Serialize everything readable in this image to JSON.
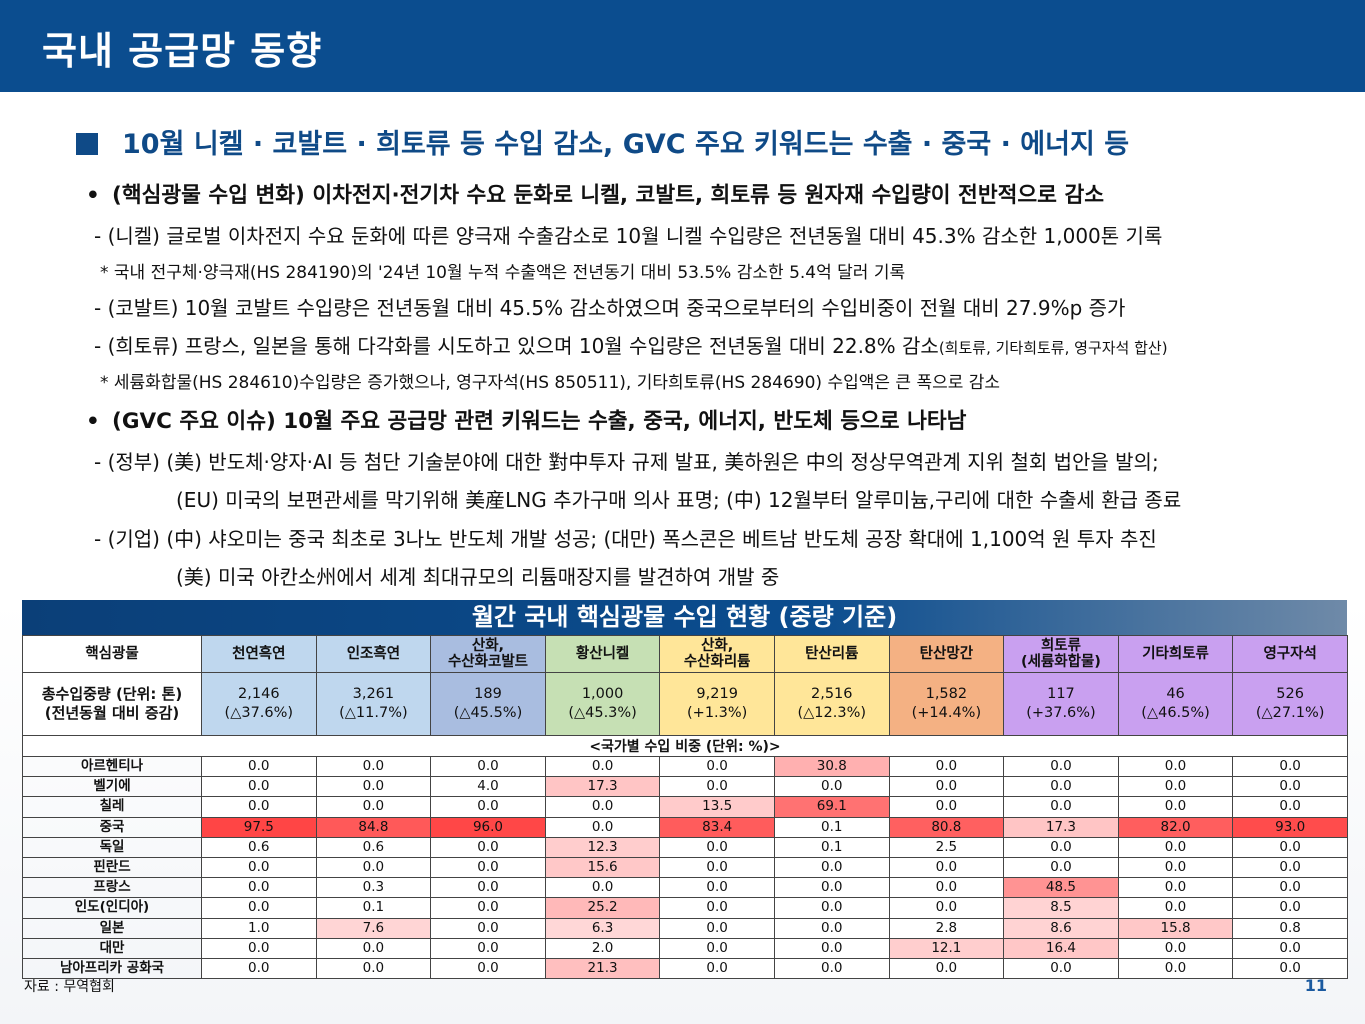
{
  "header": {
    "title": "국내 공급망 동향"
  },
  "section": {
    "title": "10월 니켈 · 코발트 · 희토류 등 수입 감소, GVC 주요 키워드는 수출 · 중국 · 에너지 등"
  },
  "body": {
    "b1": "(핵심광물 수입 변화) 이차전지·전기차 수요 둔화로 니켈, 코발트, 희토류 등 원자재 수입량이 전반적으로 감소",
    "b1_d1": "- (니켈) 글로벌 이차전지 수요 둔화에 따른 양극재 수출감소로 10월 니켈 수입량은 전년동월 대비 45.3% 감소한 1,000톤 기록",
    "b1_n1": "* 국내 전구체·양극재(HS 284190)의 '24년 10월 누적 수출액은 전년동기 대비 53.5% 감소한 5.4억 달러 기록",
    "b1_d2": "- (코발트) 10월 코발트 수입량은 전년동월 대비 45.5% 감소하였으며 중국으로부터의 수입비중이 전월 대비 27.9%p 증가",
    "b1_d3": "- (희토류) 프랑스, 일본을 통해 다각화를 시도하고 있으며 10월 수입량은 전년동월 대비 22.8% 감소",
    "b1_d3_small": "(희토류, 기타희토류, 영구자석 합산)",
    "b1_n2": "* 세륨화합물(HS 284610)수입량은 증가했으나, 영구자석(HS 850511), 기타희토류(HS 284690) 수입액은 큰 폭으로 감소",
    "b2": "(GVC 주요 이슈) 10월 주요 공급망 관련 키워드는 수출, 중국, 에너지, 반도체 등으로 나타남",
    "b2_d1": "- (정부) (美) 반도체·양자·AI 등 첨단 기술분야에 대한 對中투자 규제 발표, 美하원은 中의 정상무역관계 지위 철회 법안을 발의;",
    "b2_d1b": "(EU) 미국의 보편관세를 막기위해 美産LNG 추가구매 의사 표명; (中) 12월부터 알루미늄,구리에 대한 수출세 환급 종료",
    "b2_d2": "- (기업) (中) 샤오미는 중국 최초로 3나노 반도체 개발 성공; (대만) 폭스콘은 베트남 반도체 공장 확대에 1,100억 원 투자 추진",
    "b2_d2b": "(美) 미국 아칸소州에서 세계 최대규모의 리튬매장지를 발견하여 개발 중",
    "bullet_char": "•"
  },
  "table": {
    "title": "월간 국내 핵심광물 수입 현황 (중량 기준)",
    "corner": "핵심광물",
    "minerals": [
      {
        "name": "천연흑연",
        "color": "#bfd7ee"
      },
      {
        "name": "인조흑연",
        "color": "#bfd7ee"
      },
      {
        "name": "산화,\n수산화코발트",
        "color": "#a9bde0"
      },
      {
        "name": "황산니켈",
        "color": "#c6e0b4"
      },
      {
        "name": "산화,\n수산화리튬",
        "color": "#ffe699"
      },
      {
        "name": "탄산리튬",
        "color": "#ffe699"
      },
      {
        "name": "탄산망간",
        "color": "#f4b183"
      },
      {
        "name": "희토류\n(세륨화합물)",
        "color": "#c9a0f0"
      },
      {
        "name": "기타희토류",
        "color": "#c9a0f0"
      },
      {
        "name": "영구자석",
        "color": "#c9a0f0"
      }
    ],
    "total_label": "총수입중량 (단위: 톤)\n(전년동월 대비 증감)",
    "totals": [
      {
        "value": "2,146",
        "change": "(△37.6%)"
      },
      {
        "value": "3,261",
        "change": "(△11.7%)"
      },
      {
        "value": "189",
        "change": "(△45.5%)"
      },
      {
        "value": "1,000",
        "change": "(△45.3%)"
      },
      {
        "value": "9,219",
        "change": "(+1.3%)"
      },
      {
        "value": "2,516",
        "change": "(△12.3%)"
      },
      {
        "value": "1,582",
        "change": "(+14.4%)"
      },
      {
        "value": "117",
        "change": "(+37.6%)"
      },
      {
        "value": "46",
        "change": "(△46.5%)"
      },
      {
        "value": "526",
        "change": "(△27.1%)"
      }
    ],
    "sub_header": "<국가별 수입 비중 (단위: %)>",
    "rows": [
      {
        "country": "아르헨티나",
        "values": [
          "0.0",
          "0.0",
          "0.0",
          "0.0",
          "0.0",
          "30.8",
          "0.0",
          "0.0",
          "0.0",
          "0.0"
        ]
      },
      {
        "country": "벨기에",
        "values": [
          "0.0",
          "0.0",
          "4.0",
          "17.3",
          "0.0",
          "0.0",
          "0.0",
          "0.0",
          "0.0",
          "0.0"
        ]
      },
      {
        "country": "칠레",
        "values": [
          "0.0",
          "0.0",
          "0.0",
          "0.0",
          "13.5",
          "69.1",
          "0.0",
          "0.0",
          "0.0",
          "0.0"
        ]
      },
      {
        "country": "중국",
        "values": [
          "97.5",
          "84.8",
          "96.0",
          "0.0",
          "83.4",
          "0.1",
          "80.8",
          "17.3",
          "82.0",
          "93.0"
        ]
      },
      {
        "country": "독일",
        "values": [
          "0.6",
          "0.6",
          "0.0",
          "12.3",
          "0.0",
          "0.1",
          "2.5",
          "0.0",
          "0.0",
          "0.0"
        ]
      },
      {
        "country": "핀란드",
        "values": [
          "0.0",
          "0.0",
          "0.0",
          "15.6",
          "0.0",
          "0.0",
          "0.0",
          "0.0",
          "0.0",
          "0.0"
        ]
      },
      {
        "country": "프랑스",
        "values": [
          "0.0",
          "0.3",
          "0.0",
          "0.0",
          "0.0",
          "0.0",
          "0.0",
          "48.5",
          "0.0",
          "0.0"
        ]
      },
      {
        "country": "인도(인디아)",
        "values": [
          "0.0",
          "0.1",
          "0.0",
          "25.2",
          "0.0",
          "0.0",
          "0.0",
          "8.5",
          "0.0",
          "0.0"
        ]
      },
      {
        "country": "일본",
        "values": [
          "1.0",
          "7.6",
          "0.0",
          "6.3",
          "0.0",
          "0.0",
          "2.8",
          "8.6",
          "15.8",
          "0.8"
        ]
      },
      {
        "country": "대만",
        "values": [
          "0.0",
          "0.0",
          "0.0",
          "2.0",
          "0.0",
          "0.0",
          "12.1",
          "16.4",
          "0.0",
          "0.0"
        ]
      },
      {
        "country": "남아프리카 공화국",
        "values": [
          "0.0",
          "0.0",
          "0.0",
          "21.3",
          "0.0",
          "0.0",
          "0.0",
          "0.0",
          "0.0",
          "0.0"
        ]
      }
    ]
  },
  "footer": {
    "source": "자료 : 무역협회",
    "page": "11"
  }
}
